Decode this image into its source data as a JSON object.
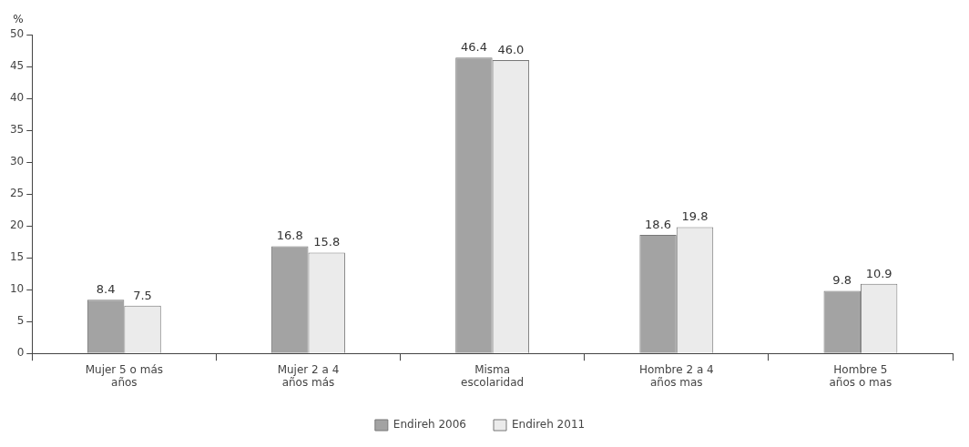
{
  "chart_data": {
    "type": "bar",
    "ylabel": "%",
    "categories": [
      "Mujer 5 o más\naños",
      "Mujer 2 a 4\naños más",
      "Misma\nescolaridad",
      "Hombre 2 a 4\naños mas",
      "Hombre 5\naños o mas"
    ],
    "series": [
      {
        "name": "Endireh 2006",
        "color": "#a3a3a3",
        "values": [
          8.4,
          16.8,
          46.4,
          18.6,
          9.8
        ],
        "value_labels": [
          "8.4",
          "16.8",
          "46.4",
          "18.6",
          "9.8"
        ]
      },
      {
        "name": "Endireh 2011",
        "color": "#ebebeb",
        "values": [
          7.5,
          15.8,
          46.0,
          19.8,
          10.9
        ],
        "value_labels": [
          "7.5",
          "15.8",
          "46.0",
          "19.8",
          "10.9"
        ]
      }
    ],
    "ylim": [
      0,
      50
    ],
    "yticks": [
      0,
      5,
      10,
      15,
      20,
      25,
      30,
      35,
      40,
      45,
      50
    ],
    "grid": false,
    "legend": "bottom"
  }
}
